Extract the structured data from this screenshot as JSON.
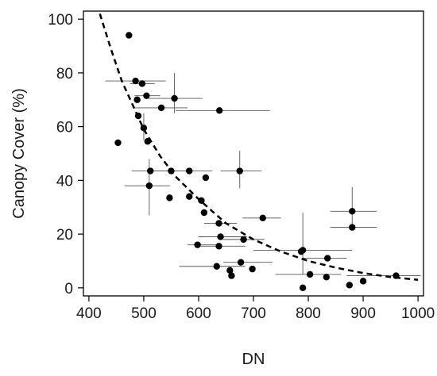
{
  "chart_data": {
    "type": "scatter",
    "title": "",
    "xlabel": "DN",
    "ylabel": "Canopy Cover (%)",
    "xlim": [
      390,
      1010
    ],
    "ylim": [
      -3,
      103
    ],
    "xticks": [
      400,
      500,
      600,
      700,
      800,
      900,
      1000
    ],
    "yticks": [
      0,
      20,
      40,
      60,
      80,
      100
    ],
    "grid": false,
    "legend": "none",
    "colors": {
      "points": "#000000",
      "error_bars": "#555555",
      "fit": "#000000",
      "axes": "#000000"
    },
    "fit_curve": {
      "style": "dashed",
      "x": [
        420,
        440,
        460,
        480,
        500,
        530,
        560,
        600,
        650,
        700,
        750,
        800,
        850,
        900,
        950,
        1000
      ],
      "y": [
        102,
        89,
        77,
        68,
        59,
        49,
        41,
        33,
        24,
        18,
        13.5,
        10,
        7.5,
        5.5,
        4,
        3
      ]
    },
    "points": [
      {
        "x": 473,
        "y": 94,
        "xerr": [
          0,
          0
        ],
        "yerr": [
          0,
          0
        ]
      },
      {
        "x": 453,
        "y": 54,
        "xerr": [
          0,
          0
        ],
        "yerr": [
          0,
          0
        ]
      },
      {
        "x": 485,
        "y": 77,
        "xerr": [
          430,
          540
        ],
        "yerr": [
          0,
          0
        ]
      },
      {
        "x": 497,
        "y": 76,
        "xerr": [
          475,
          520
        ],
        "yerr": [
          0,
          0
        ]
      },
      {
        "x": 505,
        "y": 71.5,
        "xerr": [
          483,
          530
        ],
        "yerr": [
          0,
          0
        ]
      },
      {
        "x": 488,
        "y": 70,
        "xerr": [
          0,
          0
        ],
        "yerr": [
          0,
          0
        ]
      },
      {
        "x": 556,
        "y": 70.5,
        "xerr": [
          508,
          607
        ],
        "yerr": [
          65,
          80
        ]
      },
      {
        "x": 532,
        "y": 67,
        "xerr": [
          480,
          580
        ],
        "yerr": [
          0,
          0
        ]
      },
      {
        "x": 638,
        "y": 66,
        "xerr": [
          558,
          730
        ],
        "yerr": [
          0,
          0
        ]
      },
      {
        "x": 490,
        "y": 64,
        "xerr": [
          0,
          0
        ],
        "yerr": [
          0,
          0
        ]
      },
      {
        "x": 500,
        "y": 59.5,
        "xerr": [
          0,
          0
        ],
        "yerr": [
          55,
          65
        ]
      },
      {
        "x": 507,
        "y": 54.5,
        "xerr": [
          0,
          0
        ],
        "yerr": [
          0,
          0
        ]
      },
      {
        "x": 512,
        "y": 43.5,
        "xerr": [
          478,
          548
        ],
        "yerr": [
          0,
          0
        ]
      },
      {
        "x": 550,
        "y": 43.5,
        "xerr": [
          510,
          590
        ],
        "yerr": [
          0,
          0
        ]
      },
      {
        "x": 583,
        "y": 43.5,
        "xerr": [
          545,
          625
        ],
        "yerr": [
          0,
          0
        ]
      },
      {
        "x": 675,
        "y": 43.5,
        "xerr": [
          640,
          715
        ],
        "yerr": [
          37,
          51
        ]
      },
      {
        "x": 613,
        "y": 41,
        "xerr": [
          0,
          0
        ],
        "yerr": [
          0,
          0
        ]
      },
      {
        "x": 510,
        "y": 38,
        "xerr": [
          465,
          548
        ],
        "yerr": [
          27,
          48
        ]
      },
      {
        "x": 547,
        "y": 33.5,
        "xerr": [
          0,
          0
        ],
        "yerr": [
          0,
          0
        ]
      },
      {
        "x": 583,
        "y": 34,
        "xerr": [
          0,
          0
        ],
        "yerr": [
          0,
          0
        ]
      },
      {
        "x": 605,
        "y": 32.5,
        "xerr": [
          0,
          0
        ],
        "yerr": [
          0,
          0
        ]
      },
      {
        "x": 610,
        "y": 28,
        "xerr": [
          0,
          0
        ],
        "yerr": [
          0,
          0
        ]
      },
      {
        "x": 717,
        "y": 26,
        "xerr": [
          680,
          750
        ],
        "yerr": [
          0,
          0
        ]
      },
      {
        "x": 637,
        "y": 24,
        "xerr": [
          610,
          670
        ],
        "yerr": [
          0,
          0
        ]
      },
      {
        "x": 640,
        "y": 19,
        "xerr": [
          600,
          688
        ],
        "yerr": [
          0,
          0
        ]
      },
      {
        "x": 682,
        "y": 18,
        "xerr": [
          645,
          720
        ],
        "yerr": [
          0,
          0
        ]
      },
      {
        "x": 598,
        "y": 16,
        "xerr": [
          580,
          640
        ],
        "yerr": [
          0,
          0
        ]
      },
      {
        "x": 637,
        "y": 15.5,
        "xerr": [
          595,
          685
        ],
        "yerr": [
          0,
          0
        ]
      },
      {
        "x": 790,
        "y": 14,
        "xerr": [
          700,
          880
        ],
        "yerr": [
          5,
          28
        ]
      },
      {
        "x": 787,
        "y": 13.5,
        "xerr": [
          0,
          0
        ],
        "yerr": [
          0,
          0
        ]
      },
      {
        "x": 835,
        "y": 11,
        "xerr": [
          790,
          870
        ],
        "yerr": [
          0,
          0
        ]
      },
      {
        "x": 677,
        "y": 9.5,
        "xerr": [
          645,
          735
        ],
        "yerr": [
          0,
          0
        ]
      },
      {
        "x": 633,
        "y": 8,
        "xerr": [
          565,
          685
        ],
        "yerr": [
          0,
          0
        ]
      },
      {
        "x": 698,
        "y": 7,
        "xerr": [
          0,
          0
        ],
        "yerr": [
          0,
          0
        ]
      },
      {
        "x": 657,
        "y": 6.5,
        "xerr": [
          0,
          0
        ],
        "yerr": [
          0,
          0
        ]
      },
      {
        "x": 660,
        "y": 4.5,
        "xerr": [
          0,
          0
        ],
        "yerr": [
          0,
          0
        ]
      },
      {
        "x": 803,
        "y": 5,
        "xerr": [
          740,
          860
        ],
        "yerr": [
          0,
          0
        ]
      },
      {
        "x": 833,
        "y": 4,
        "xerr": [
          0,
          0
        ],
        "yerr": [
          0,
          0
        ]
      },
      {
        "x": 880,
        "y": 28.5,
        "xerr": [
          840,
          925
        ],
        "yerr": [
          22,
          37.5
        ]
      },
      {
        "x": 880,
        "y": 22.5,
        "xerr": [
          840,
          925
        ],
        "yerr": [
          0,
          0
        ]
      },
      {
        "x": 900,
        "y": 2.5,
        "xerr": [
          0,
          0
        ],
        "yerr": [
          0,
          0
        ]
      },
      {
        "x": 875,
        "y": 1,
        "xerr": [
          0,
          0
        ],
        "yerr": [
          0,
          0
        ]
      },
      {
        "x": 960,
        "y": 4.5,
        "xerr": [
          870,
          1005
        ],
        "yerr": [
          0,
          0
        ]
      },
      {
        "x": 790,
        "y": 0,
        "xerr": [
          0,
          0
        ],
        "yerr": [
          0,
          0
        ]
      }
    ]
  }
}
